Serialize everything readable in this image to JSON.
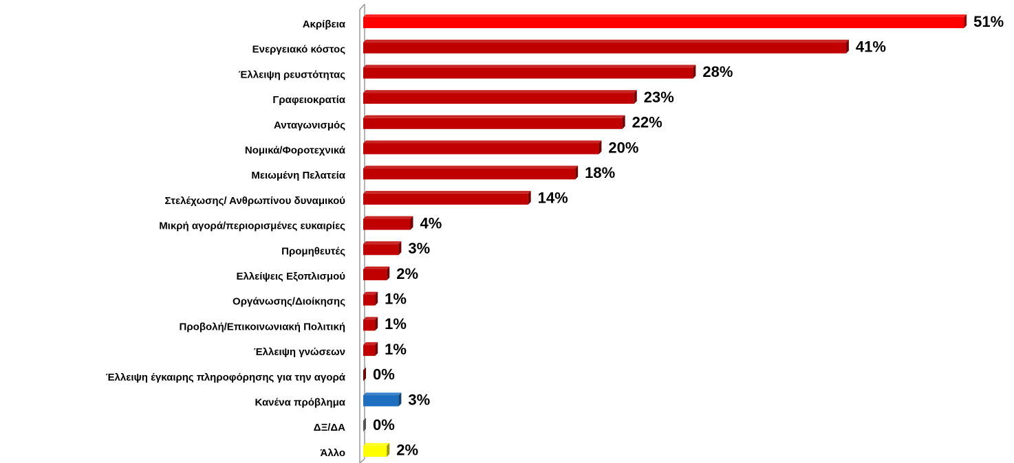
{
  "chart_data": {
    "type": "hbar",
    "categories": [
      "Ακρίβεια",
      "Ενεργειακό κόστος",
      "Έλλειψη ρευστότητας",
      "Γραφειοκρατία",
      "Ανταγωνισμός",
      "Νομικά/Φοροτεχνικά",
      "Μειωμένη Πελατεία",
      "Στελέχωσης/ Ανθρωπίνου δυναμικού",
      "Μικρή αγορά/περιορισμένες ευκαιρίες",
      "Προμηθευτές",
      "Ελλείψεις Εξοπλισμού",
      "Οργάνωσης/Διοίκησης",
      "Προβολή/Επικοινωνιακή Πολιτική",
      "Έλλειψη γνώσεων",
      "Έλλειψη έγκαιρης πληροφόρησης για την αγορά",
      "Κανένα πρόβλημα",
      "ΔΞ/ΔΑ",
      "Άλλο"
    ],
    "values": [
      51,
      41,
      28,
      23,
      22,
      20,
      18,
      14,
      4,
      3,
      2,
      1,
      1,
      1,
      0,
      3,
      0,
      2
    ],
    "value_labels": [
      "51%",
      "41%",
      "28%",
      "23%",
      "22%",
      "20%",
      "18%",
      "14%",
      "4%",
      "3%",
      "2%",
      "1%",
      "1%",
      "1%",
      "0%",
      "3%",
      "0%",
      "2%"
    ],
    "colors": [
      "#ff0000",
      "#c00000",
      "#c00000",
      "#c00000",
      "#c00000",
      "#c00000",
      "#c00000",
      "#c00000",
      "#c00000",
      "#c00000",
      "#c00000",
      "#c00000",
      "#c00000",
      "#c00000",
      "#c00000",
      "#1f6fc0",
      "#8c8c8c",
      "#ffff00"
    ]
  }
}
